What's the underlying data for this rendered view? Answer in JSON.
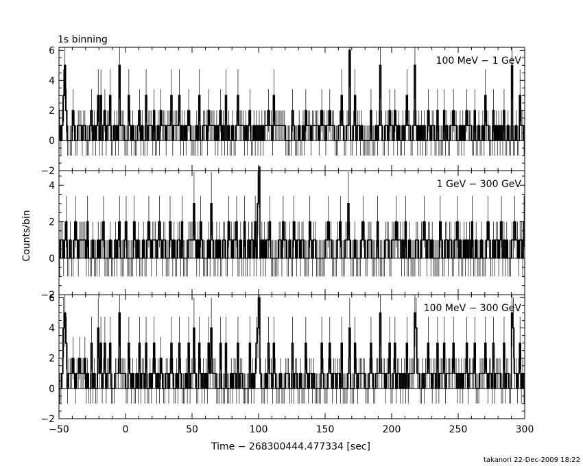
{
  "figure": {
    "top_label": "1s binning",
    "ylabel": "Counts/bin",
    "xlabel": "Time − 268300444.477334 [sec]",
    "footer": "takanori 22-Dec-2009 18:22",
    "line_color": "#000000",
    "background": "#ffffff"
  },
  "chart_data": [
    {
      "type": "line",
      "title": "100 MeV − 1 GeV",
      "xlabel": "",
      "ylabel": "",
      "xlim": [
        -50,
        300
      ],
      "ylim": [
        -2,
        6.2
      ],
      "yticks": [
        -2,
        0,
        2,
        4,
        6
      ],
      "ytick_labels": [
        "−2",
        "0",
        "2",
        "4",
        "6"
      ],
      "grid": false,
      "baseline_counts": [
        0,
        1
      ],
      "bin_width": 1,
      "series": [
        {
          "x": [
            -47,
            -46,
            -45,
            -40,
            -35,
            -31,
            -26,
            -21,
            -19,
            -16,
            -12,
            -5,
            2,
            10,
            15,
            21,
            26,
            34,
            40,
            47,
            55,
            62,
            71,
            75,
            84,
            93,
            107,
            111,
            125,
            135,
            147,
            153,
            162,
            168,
            172,
            184,
            191,
            198,
            202,
            211,
            217,
            227,
            234,
            239,
            246,
            256,
            262,
            270,
            276,
            284,
            290,
            296
          ],
          "y": [
            3,
            5,
            2,
            2,
            1,
            1,
            2,
            3,
            3,
            2,
            3,
            5,
            3,
            2,
            3,
            2,
            2,
            3,
            3,
            2,
            3,
            2,
            2,
            3,
            3,
            2,
            2,
            3,
            2,
            2,
            2,
            2,
            3,
            6,
            3,
            2,
            5,
            2,
            2,
            3,
            5,
            2,
            2,
            2,
            2,
            2,
            2,
            3,
            2,
            2,
            5,
            3
          ]
        }
      ]
    },
    {
      "type": "line",
      "title": "1 GeV − 300 GeV",
      "xlabel": "",
      "ylabel": "",
      "xlim": [
        -50,
        300
      ],
      "ylim": [
        -2,
        4.8
      ],
      "yticks": [
        -2,
        0,
        2,
        4
      ],
      "ytick_labels": [
        "−2",
        "0",
        "2",
        "4"
      ],
      "grid": false,
      "baseline_counts": [
        0,
        1
      ],
      "bin_width": 1,
      "series": [
        {
          "x": [
            -45,
            -38,
            -29,
            -17,
            -5,
            0,
            6,
            17,
            25,
            33,
            42,
            51,
            56,
            64,
            77,
            83,
            89,
            97,
            99,
            100,
            108,
            118,
            126,
            138,
            152,
            161,
            167,
            178,
            189,
            203,
            210,
            224,
            236,
            249,
            260,
            272,
            282,
            292,
            299
          ],
          "y": [
            2,
            2,
            2,
            2,
            2,
            2,
            2,
            2,
            2,
            2,
            2,
            3,
            2,
            3,
            2,
            2,
            2,
            2,
            3,
            5,
            2,
            2,
            2,
            2,
            2,
            2,
            3,
            2,
            2,
            2,
            2,
            2,
            2,
            2,
            2,
            2,
            2,
            2,
            2
          ]
        }
      ]
    },
    {
      "type": "line",
      "title": "100 MeV − 300 GeV",
      "xlabel": "Time − 268300444.477334 [sec]",
      "ylabel": "",
      "xlim": [
        -50,
        300
      ],
      "ylim": [
        -2,
        6.2
      ],
      "yticks": [
        -2,
        0,
        2,
        4,
        6
      ],
      "ytick_labels": [
        "−2",
        "0",
        "2",
        "4",
        "6"
      ],
      "xticks": [
        -50,
        0,
        50,
        100,
        150,
        200,
        250,
        300
      ],
      "xtick_labels": [
        "−50",
        "0",
        "50",
        "100",
        "150",
        "200",
        "250",
        "300"
      ],
      "grid": false,
      "baseline_counts": [
        0,
        1
      ],
      "bin_width": 1,
      "series": [
        {
          "x": [
            -47,
            -46,
            -45,
            -40,
            -35,
            -31,
            -26,
            -21,
            -19,
            -16,
            -12,
            -5,
            2,
            10,
            15,
            21,
            26,
            34,
            40,
            47,
            51,
            55,
            62,
            64,
            71,
            75,
            84,
            93,
            98,
            99,
            100,
            107,
            111,
            125,
            135,
            147,
            153,
            162,
            168,
            172,
            184,
            191,
            198,
            202,
            211,
            217,
            218,
            227,
            234,
            239,
            246,
            256,
            262,
            270,
            276,
            284,
            290,
            291,
            296
          ],
          "y": [
            4,
            5,
            3,
            2,
            2,
            2,
            3,
            4,
            3,
            3,
            3,
            5,
            3,
            3,
            3,
            3,
            2,
            3,
            3,
            3,
            4,
            3,
            3,
            4,
            3,
            3,
            3,
            3,
            3,
            4,
            6,
            3,
            3,
            3,
            3,
            3,
            3,
            3,
            4,
            3,
            3,
            5,
            3,
            3,
            3,
            5,
            4,
            3,
            3,
            3,
            3,
            3,
            3,
            3,
            3,
            3,
            5,
            4,
            3
          ]
        }
      ]
    }
  ]
}
